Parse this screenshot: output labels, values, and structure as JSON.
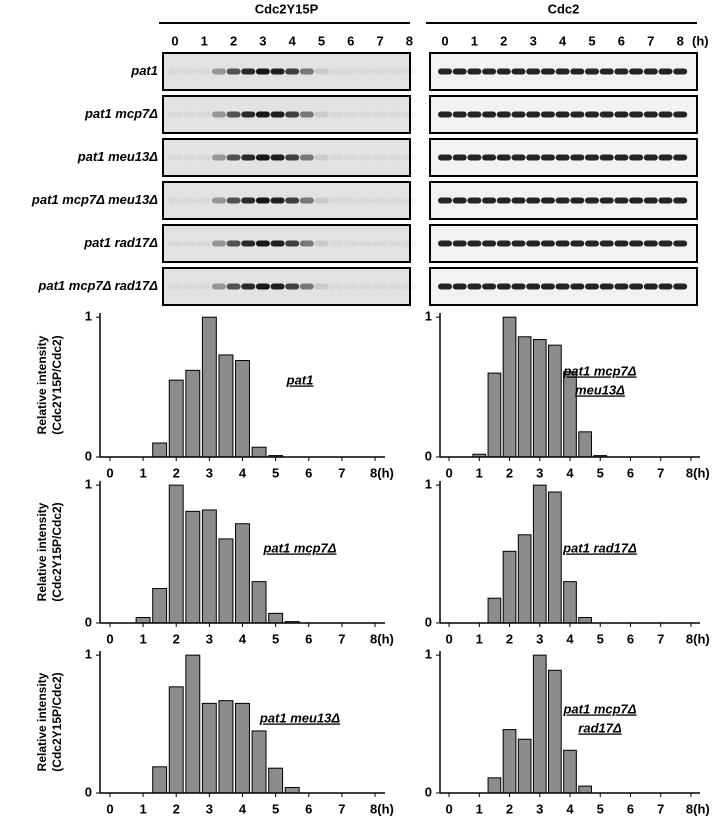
{
  "blot": {
    "panels": [
      {
        "title": "Cdc2Y15P",
        "times": [
          "0",
          "1",
          "2",
          "3",
          "4",
          "5",
          "6",
          "7",
          "8"
        ],
        "half_times": [
          "0.5",
          "1.5",
          "2.5",
          "3.5",
          "4.5",
          "5.5",
          "6.5",
          "7.5"
        ]
      },
      {
        "title": "Cdc2",
        "times": [
          "0",
          "1",
          "2",
          "3",
          "4",
          "5",
          "6",
          "7",
          "8"
        ],
        "half_times": [
          "0.5",
          "1.5",
          "2.5",
          "3.5",
          "4.5",
          "5.5",
          "6.5",
          "7.5"
        ]
      }
    ],
    "unit": "(h)",
    "rows": [
      "pat1",
      "pat1 mcp7Δ",
      "pat1 meu13Δ",
      "pat1 mcp7Δ meu13Δ",
      "pat1 rad17Δ",
      "pat1 mcp7Δ rad17Δ"
    ]
  },
  "chart_data": [
    {
      "type": "bar",
      "title": [
        "pat1"
      ],
      "ylabel": [
        "Relative intensity",
        "(Cdc2Y15P/Cdc2)"
      ],
      "x": [
        0,
        0.5,
        1,
        1.5,
        2,
        2.5,
        3,
        3.5,
        4,
        4.5,
        5,
        5.5,
        6,
        6.5,
        7,
        7.5,
        8
      ],
      "values": [
        0,
        0,
        0,
        0.1,
        0.55,
        0.62,
        1.0,
        0.73,
        0.69,
        0.07,
        0.01,
        0,
        0,
        0,
        0,
        0,
        0
      ],
      "color": "#8c8c8c",
      "xlim": [
        -0.3,
        8.3
      ],
      "ylim": [
        0,
        1.03
      ],
      "xticks": [
        0,
        1,
        2,
        3,
        4,
        5,
        6,
        7,
        {
          "value": 8,
          "label": "8(h)"
        }
      ],
      "yticks": [
        0,
        1
      ]
    },
    {
      "type": "bar",
      "title": [
        "pat1 mcp7Δ",
        "meu13Δ"
      ],
      "x": [
        0,
        0.5,
        1,
        1.5,
        2,
        2.5,
        3,
        3.5,
        4,
        4.5,
        5,
        5.5,
        6,
        6.5,
        7,
        7.5,
        8
      ],
      "values": [
        0,
        0,
        0.02,
        0.6,
        1.0,
        0.86,
        0.84,
        0.8,
        0.61,
        0.18,
        0.01,
        0,
        0,
        0,
        0,
        0,
        0
      ],
      "color": "#8c8c8c",
      "xlim": [
        -0.3,
        8.3
      ],
      "ylim": [
        0,
        1.03
      ],
      "xticks": [
        0,
        1,
        2,
        3,
        4,
        5,
        6,
        7,
        {
          "value": 8,
          "label": "8(h)"
        }
      ],
      "yticks": [
        0,
        1
      ]
    },
    {
      "type": "bar",
      "title": [
        "pat1 mcp7Δ"
      ],
      "ylabel": [
        "Relative intensity",
        "(Cdc2Y15P/Cdc2)"
      ],
      "x": [
        0,
        0.5,
        1,
        1.5,
        2,
        2.5,
        3,
        3.5,
        4,
        4.5,
        5,
        5.5,
        6,
        6.5,
        7,
        7.5,
        8
      ],
      "values": [
        0,
        0,
        0.04,
        0.25,
        1.0,
        0.81,
        0.82,
        0.61,
        0.72,
        0.3,
        0.07,
        0.01,
        0,
        0,
        0,
        0,
        0
      ],
      "color": "#8c8c8c",
      "xlim": [
        -0.3,
        8.3
      ],
      "ylim": [
        0,
        1.03
      ],
      "xticks": [
        0,
        1,
        2,
        3,
        4,
        5,
        6,
        7,
        {
          "value": 8,
          "label": "8(h)"
        }
      ],
      "yticks": [
        0,
        1
      ]
    },
    {
      "type": "bar",
      "title": [
        "pat1 rad17Δ"
      ],
      "x": [
        0,
        0.5,
        1,
        1.5,
        2,
        2.5,
        3,
        3.5,
        4,
        4.5,
        5,
        5.5,
        6,
        6.5,
        7,
        7.5,
        8
      ],
      "values": [
        0,
        0,
        0,
        0.18,
        0.52,
        0.64,
        1.0,
        0.95,
        0.3,
        0.04,
        0,
        0,
        0,
        0,
        0,
        0,
        0
      ],
      "color": "#8c8c8c",
      "xlim": [
        -0.3,
        8.3
      ],
      "ylim": [
        0,
        1.03
      ],
      "xticks": [
        0,
        1,
        2,
        3,
        4,
        5,
        6,
        7,
        {
          "value": 8,
          "label": "8(h)"
        }
      ],
      "yticks": [
        0,
        1
      ]
    },
    {
      "type": "bar",
      "title": [
        "pat1 meu13Δ"
      ],
      "ylabel": [
        "Relative intensity",
        "(Cdc2Y15P/Cdc2)"
      ],
      "x": [
        0,
        0.5,
        1,
        1.5,
        2,
        2.5,
        3,
        3.5,
        4,
        4.5,
        5,
        5.5,
        6,
        6.5,
        7,
        7.5,
        8
      ],
      "values": [
        0,
        0,
        0,
        0.19,
        0.77,
        1.0,
        0.65,
        0.67,
        0.65,
        0.45,
        0.18,
        0.04,
        0,
        0,
        0,
        0,
        0
      ],
      "color": "#8c8c8c",
      "xlim": [
        -0.3,
        8.3
      ],
      "ylim": [
        0,
        1.03
      ],
      "xticks": [
        0,
        1,
        2,
        3,
        4,
        5,
        6,
        7,
        {
          "value": 8,
          "label": "8(h)"
        }
      ],
      "yticks": [
        0,
        1
      ]
    },
    {
      "type": "bar",
      "title": [
        "pat1 mcp7Δ",
        "rad17Δ"
      ],
      "x": [
        0,
        0.5,
        1,
        1.5,
        2,
        2.5,
        3,
        3.5,
        4,
        4.5,
        5,
        5.5,
        6,
        6.5,
        7,
        7.5,
        8
      ],
      "values": [
        0,
        0,
        0,
        0.11,
        0.46,
        0.39,
        1.0,
        0.89,
        0.31,
        0.05,
        0,
        0,
        0,
        0,
        0,
        0,
        0
      ],
      "color": "#8c8c8c",
      "xlim": [
        -0.3,
        8.3
      ],
      "ylim": [
        0,
        1.03
      ],
      "xticks": [
        0,
        1,
        2,
        3,
        4,
        5,
        6,
        7,
        {
          "value": 8,
          "label": "8(h)"
        }
      ],
      "yticks": [
        0,
        1
      ]
    }
  ]
}
